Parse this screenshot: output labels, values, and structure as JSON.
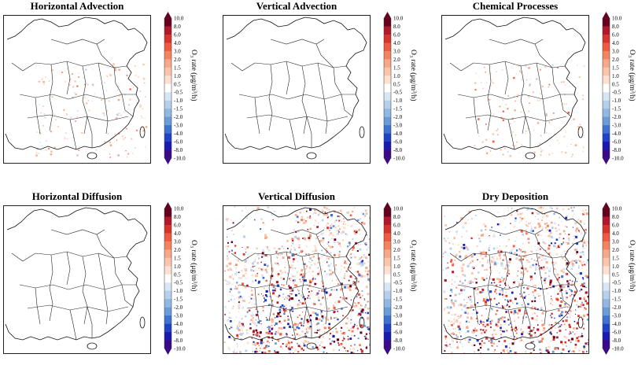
{
  "figure": {
    "panels": [
      {
        "title": "Horizontal Advection",
        "activity": "low"
      },
      {
        "title": "Vertical Advection",
        "activity": "none"
      },
      {
        "title": "Chemical Processes",
        "activity": "low"
      },
      {
        "title": "Horizontal Diffusion",
        "activity": "none"
      },
      {
        "title": "Vertical Diffusion",
        "activity": "high"
      },
      {
        "title": "Dry Deposition",
        "activity": "high"
      }
    ],
    "colorbar": {
      "label": "O₃ rate (μg/m³/h)",
      "ticks": [
        "10.0",
        "8.0",
        "6.0",
        "4.0",
        "3.0",
        "2.0",
        "1.5",
        "1.0",
        "0.5",
        "-0.5",
        "-1.0",
        "-1.5",
        "-2.0",
        "-3.0",
        "-4.0",
        "-6.0",
        "-8.0",
        "-10.0"
      ],
      "colors": [
        "#67001f",
        "#b2182b",
        "#d6342c",
        "#ef5a42",
        "#f4845f",
        "#f7a889",
        "#fac5ab",
        "#fde0d0",
        "#ffffff",
        "#d7e6f5",
        "#b6d0ec",
        "#91b8e2",
        "#6a9dd8",
        "#3f73d0",
        "#1f42c6",
        "#1a1ab0",
        "#3b0a8a"
      ]
    }
  },
  "chart_data": {
    "type": "heatmap",
    "description_scope": "six spatial maps of O3 process rates over eastern China with shared diverging colorbar",
    "levels": [
      -10.0,
      -8.0,
      -6.0,
      -4.0,
      -3.0,
      -2.0,
      -1.5,
      -1.0,
      -0.5,
      0.5,
      1.0,
      1.5,
      2.0,
      3.0,
      4.0,
      6.0,
      8.0,
      10.0
    ],
    "colorbar_label": "O₃ rate (μg/m³/h)",
    "panels": [
      "Horizontal Advection",
      "Vertical Advection",
      "Chemical Processes",
      "Horizontal Diffusion",
      "Vertical Diffusion",
      "Dry Deposition"
    ],
    "extend": "both"
  }
}
